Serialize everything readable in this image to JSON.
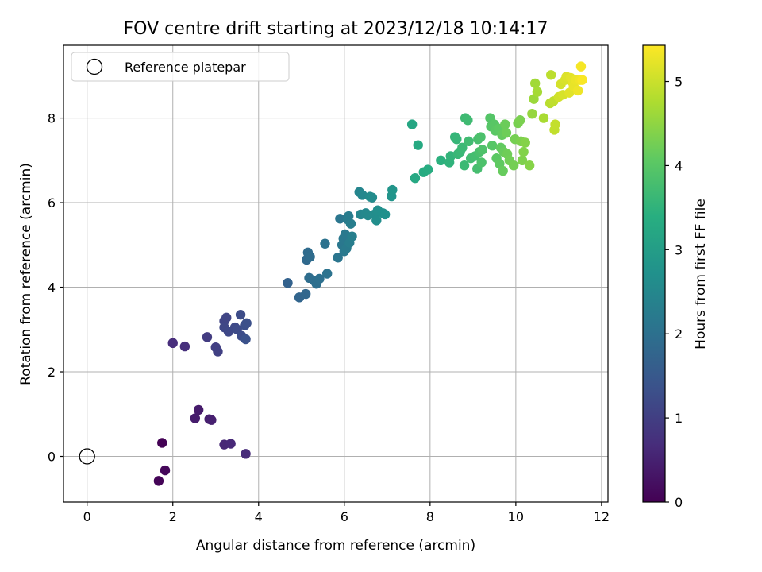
{
  "chart_data": {
    "type": "scatter",
    "title": "FOV centre drift starting at 2023/12/18 10:14:17",
    "xlabel": "Angular distance from reference (arcmin)",
    "ylabel": "Rotation from reference (arcmin)",
    "xlim": [
      -0.55,
      12.15
    ],
    "ylim": [
      -1.08,
      9.72
    ],
    "x_ticks": [
      0,
      2,
      4,
      6,
      8,
      10,
      12
    ],
    "y_ticks": [
      0,
      2,
      4,
      6,
      8
    ],
    "grid": true,
    "legend": {
      "placement": "top-left",
      "entries": [
        "Reference platepar"
      ]
    },
    "reference_point": {
      "x": 0,
      "y": 0,
      "label": "Reference platepar"
    },
    "colorbar": {
      "label": "Hours from first FF file",
      "range": [
        0,
        5.43
      ],
      "ticks": [
        0,
        1,
        2,
        3,
        4,
        5
      ],
      "colormap": "viridis"
    },
    "points": [
      [
        1.75,
        0.32,
        0.02
      ],
      [
        1.67,
        -0.58,
        0.05
      ],
      [
        1.82,
        -0.33,
        0.1
      ],
      [
        2.6,
        1.1,
        0.4
      ],
      [
        2.52,
        0.9,
        0.42
      ],
      [
        2.85,
        0.88,
        0.45
      ],
      [
        2.9,
        0.86,
        0.48
      ],
      [
        3.2,
        0.28,
        0.6
      ],
      [
        3.35,
        0.3,
        0.62
      ],
      [
        3.7,
        0.06,
        0.66
      ],
      [
        2.0,
        2.68,
        0.7
      ],
      [
        2.28,
        2.6,
        0.74
      ],
      [
        2.8,
        2.82,
        0.95
      ],
      [
        3.0,
        2.58,
        1.0
      ],
      [
        3.05,
        2.48,
        1.03
      ],
      [
        3.2,
        3.2,
        1.1
      ],
      [
        3.25,
        3.28,
        1.12
      ],
      [
        3.2,
        3.05,
        1.15
      ],
      [
        3.3,
        2.95,
        1.18
      ],
      [
        3.45,
        3.05,
        1.2
      ],
      [
        3.5,
        3.0,
        1.22
      ],
      [
        3.58,
        3.35,
        1.25
      ],
      [
        3.6,
        2.85,
        1.27
      ],
      [
        3.68,
        3.1,
        1.3
      ],
      [
        3.72,
        3.15,
        1.32
      ],
      [
        3.7,
        2.77,
        1.35
      ],
      [
        4.68,
        4.1,
        1.7
      ],
      [
        4.95,
        3.76,
        1.75
      ],
      [
        5.1,
        3.84,
        1.8
      ],
      [
        5.12,
        4.65,
        1.85
      ],
      [
        5.15,
        4.82,
        1.88
      ],
      [
        5.2,
        4.72,
        1.9
      ],
      [
        5.18,
        4.22,
        1.92
      ],
      [
        5.3,
        4.15,
        1.95
      ],
      [
        5.35,
        4.08,
        1.97
      ],
      [
        5.42,
        4.2,
        2.0
      ],
      [
        5.55,
        5.03,
        2.03
      ],
      [
        5.6,
        4.32,
        2.05
      ],
      [
        5.85,
        4.7,
        2.1
      ],
      [
        5.9,
        5.62,
        2.12
      ],
      [
        5.95,
        5.0,
        2.14
      ],
      [
        5.98,
        5.15,
        2.16
      ],
      [
        6.0,
        4.85,
        2.18
      ],
      [
        6.02,
        5.25,
        2.2
      ],
      [
        6.05,
        4.92,
        2.22
      ],
      [
        6.08,
        5.6,
        2.24
      ],
      [
        6.1,
        5.68,
        2.26
      ],
      [
        6.12,
        5.05,
        2.28
      ],
      [
        6.15,
        5.5,
        2.3
      ],
      [
        6.18,
        5.2,
        2.32
      ],
      [
        6.35,
        6.25,
        2.45
      ],
      [
        6.38,
        5.72,
        2.48
      ],
      [
        6.42,
        6.18,
        2.5
      ],
      [
        6.5,
        5.75,
        2.52
      ],
      [
        6.55,
        5.7,
        2.55
      ],
      [
        6.6,
        6.14,
        2.58
      ],
      [
        6.65,
        6.12,
        2.6
      ],
      [
        6.7,
        5.72,
        2.62
      ],
      [
        6.75,
        5.58,
        2.65
      ],
      [
        6.78,
        5.82,
        2.68
      ],
      [
        6.9,
        5.75,
        2.7
      ],
      [
        6.95,
        5.72,
        2.72
      ],
      [
        7.1,
        6.15,
        2.78
      ],
      [
        7.12,
        6.3,
        2.8
      ],
      [
        7.58,
        7.85,
        3.2
      ],
      [
        7.65,
        6.58,
        3.25
      ],
      [
        7.72,
        7.36,
        3.28
      ],
      [
        7.85,
        6.72,
        3.32
      ],
      [
        7.95,
        6.78,
        3.35
      ],
      [
        8.25,
        7.0,
        3.45
      ],
      [
        8.45,
        6.95,
        3.5
      ],
      [
        8.48,
        7.1,
        3.53
      ],
      [
        8.58,
        7.55,
        3.56
      ],
      [
        8.62,
        7.5,
        3.58
      ],
      [
        8.65,
        7.15,
        3.6
      ],
      [
        8.7,
        7.2,
        3.62
      ],
      [
        8.75,
        7.3,
        3.64
      ],
      [
        8.8,
        6.88,
        3.66
      ],
      [
        8.82,
        8.0,
        3.68
      ],
      [
        8.88,
        7.95,
        3.7
      ],
      [
        8.9,
        7.45,
        3.72
      ],
      [
        8.95,
        7.05,
        3.74
      ],
      [
        9.05,
        7.1,
        3.76
      ],
      [
        9.1,
        6.8,
        3.78
      ],
      [
        9.12,
        7.5,
        3.8
      ],
      [
        9.15,
        7.2,
        3.82
      ],
      [
        9.18,
        7.55,
        3.84
      ],
      [
        9.2,
        6.95,
        3.86
      ],
      [
        9.22,
        7.25,
        3.88
      ],
      [
        9.4,
        8.0,
        3.95
      ],
      [
        9.42,
        7.8,
        3.97
      ],
      [
        9.45,
        7.35,
        3.99
      ],
      [
        9.5,
        7.85,
        4.0
      ],
      [
        9.52,
        7.7,
        4.02
      ],
      [
        9.55,
        7.05,
        4.04
      ],
      [
        9.6,
        7.75,
        4.06
      ],
      [
        9.62,
        6.92,
        4.08
      ],
      [
        9.65,
        7.3,
        4.1
      ],
      [
        9.68,
        7.6,
        4.12
      ],
      [
        9.7,
        6.75,
        4.14
      ],
      [
        9.72,
        7.2,
        4.16
      ],
      [
        9.75,
        7.85,
        4.18
      ],
      [
        9.78,
        7.65,
        4.2
      ],
      [
        9.8,
        7.15,
        4.22
      ],
      [
        9.85,
        7.0,
        4.24
      ],
      [
        9.95,
        6.88,
        4.26
      ],
      [
        9.98,
        7.5,
        4.28
      ],
      [
        10.05,
        7.88,
        4.3
      ],
      [
        10.1,
        7.95,
        4.32
      ],
      [
        10.12,
        7.45,
        4.34
      ],
      [
        10.15,
        7.0,
        4.36
      ],
      [
        10.18,
        7.2,
        4.38
      ],
      [
        10.22,
        7.42,
        4.4
      ],
      [
        10.32,
        6.88,
        4.42
      ],
      [
        10.38,
        8.1,
        4.55
      ],
      [
        10.42,
        8.45,
        4.6
      ],
      [
        10.45,
        8.82,
        4.65
      ],
      [
        10.5,
        8.62,
        4.68
      ],
      [
        10.65,
        8.0,
        4.72
      ],
      [
        10.8,
        8.35,
        4.85
      ],
      [
        10.82,
        9.02,
        4.88
      ],
      [
        10.88,
        8.4,
        4.9
      ],
      [
        10.9,
        7.72,
        4.92
      ],
      [
        10.92,
        7.85,
        4.94
      ],
      [
        11.0,
        8.5,
        5.05
      ],
      [
        11.05,
        8.8,
        5.08
      ],
      [
        11.1,
        8.55,
        5.1
      ],
      [
        11.15,
        8.9,
        5.12
      ],
      [
        11.18,
        8.98,
        5.15
      ],
      [
        11.25,
        8.6,
        5.18
      ],
      [
        11.28,
        8.95,
        5.2
      ],
      [
        11.32,
        8.85,
        5.22
      ],
      [
        11.35,
        8.75,
        5.25
      ],
      [
        11.4,
        8.9,
        5.28
      ],
      [
        11.45,
        8.65,
        5.3
      ],
      [
        11.5,
        8.9,
        5.33
      ],
      [
        11.52,
        9.22,
        5.36
      ],
      [
        11.55,
        8.9,
        5.4
      ]
    ]
  }
}
